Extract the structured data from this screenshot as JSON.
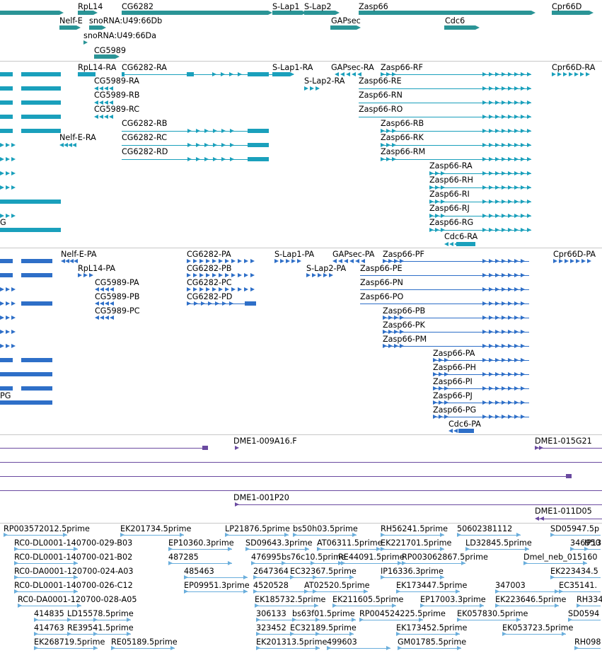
{
  "colors": {
    "gene": "#2a9496",
    "mrna": "#1aa0bc",
    "cds": "#2e6fc8",
    "clone": "#6a4aa0",
    "est": "#6aaedc",
    "separator": "#c8c8c8"
  },
  "tracks": {
    "genes": {
      "labels": [
        "RpL14",
        "CG6282",
        "S-Lap1",
        "S-Lap2",
        "Zasp66",
        "Cpr66D",
        "Nelf-E",
        "snoRNA:U49:66Db",
        "GAPsec",
        "Cdc6",
        "snoRNA:U49:66Da",
        "CG5989"
      ]
    },
    "mrnas": {
      "labels": [
        "RpL14-RA",
        "CG6282-RA",
        "S-Lap1-RA",
        "GAPsec-RA",
        "Zasp66-RF",
        "Cpr66D-RA",
        "CG5989-RA",
        "S-Lap2-RA",
        "Zasp66-RE",
        "CG5989-RB",
        "Zasp66-RN",
        "CG5989-RC",
        "Zasp66-RO",
        "CG6282-RB",
        "Zasp66-RB",
        "Nelf-E-RA",
        "CG6282-RC",
        "Zasp66-RK",
        "CG6282-RD",
        "Zasp66-RM",
        "Zasp66-RA",
        "Zasp66-RH",
        "Zasp66-RI",
        "Zasp66-RJ",
        "G",
        "Zasp66-RG",
        "Cdc6-RA"
      ]
    },
    "cds": {
      "labels": [
        "Nelf-E-PA",
        "CG6282-PA",
        "S-Lap1-PA",
        "GAPsec-PA",
        "Zasp66-PF",
        "Cpr66D-PA",
        "RpL14-PA",
        "CG6282-PB",
        "S-Lap2-PA",
        "Zasp66-PE",
        "CG5989-PA",
        "CG6282-PC",
        "Zasp66-PN",
        "CG5989-PB",
        "CG6282-PD",
        "Zasp66-PO",
        "CG5989-PC",
        "Zasp66-PB",
        "Zasp66-PK",
        "Zasp66-PM",
        "Zasp66-PA",
        "Zasp66-PH",
        "Zasp66-PI",
        "Zasp66-PJ",
        "PG",
        "Zasp66-PG",
        "Cdc6-PA"
      ]
    },
    "clones": {
      "labels": [
        "DME1-009A16.F",
        "DME1-015G21",
        "DME1-001P20",
        "DME1-011D05"
      ]
    },
    "ests": {
      "labels": [
        "RP003572012.5prime",
        "EK201734.5prime",
        "LP21876.5prime",
        "bs50h03.5prime",
        "RH56241.5prime",
        "50602381112",
        "SD05947.5p",
        "RC0-DL0001-140700-029-B03",
        "EP10360.3prime",
        "SD09643.3prime",
        "AT06311.5prime",
        "EK221701.5prime",
        "LD32845.5prime",
        "346950",
        "IP13",
        "RC0-DL0001-140700-021-B02",
        "487285",
        "476995",
        "bs76c10.5prime",
        "RE44091.5prime",
        "RP003062867.5prime",
        "Dmel_neb_015160",
        "RC0-DA0001-120700-024-A03",
        "485463",
        "2647364",
        "EC32367.5prime",
        "IP16336.3prime",
        "EK223434.5",
        "RC0-DL0001-140700-026-C12",
        "EP09951.3prime",
        "4520528",
        "AT02520.5prime",
        "EK173447.5prime",
        "347003",
        "EC35141.",
        "RC0-DA0001-120700-028-A05",
        "EK185732.5prime",
        "EK211605.5prime",
        "EP17003.3prime",
        "EK223646.5prime",
        "RH334",
        "414835",
        "LD15578.5prime",
        "306133",
        "bs63f01.5prime",
        "RP004524225.5prime",
        "EK057830.5prime",
        "SD0594",
        "414763",
        "RE39541.5prime",
        "323452",
        "EC32189.5prime",
        "EK173452.5prime",
        "EK053723.5prime",
        "EK268719.5prime",
        "RE05189.5prime",
        "EK201313.5prime",
        "499603",
        "GM01785.5prime",
        "RH098"
      ]
    }
  }
}
